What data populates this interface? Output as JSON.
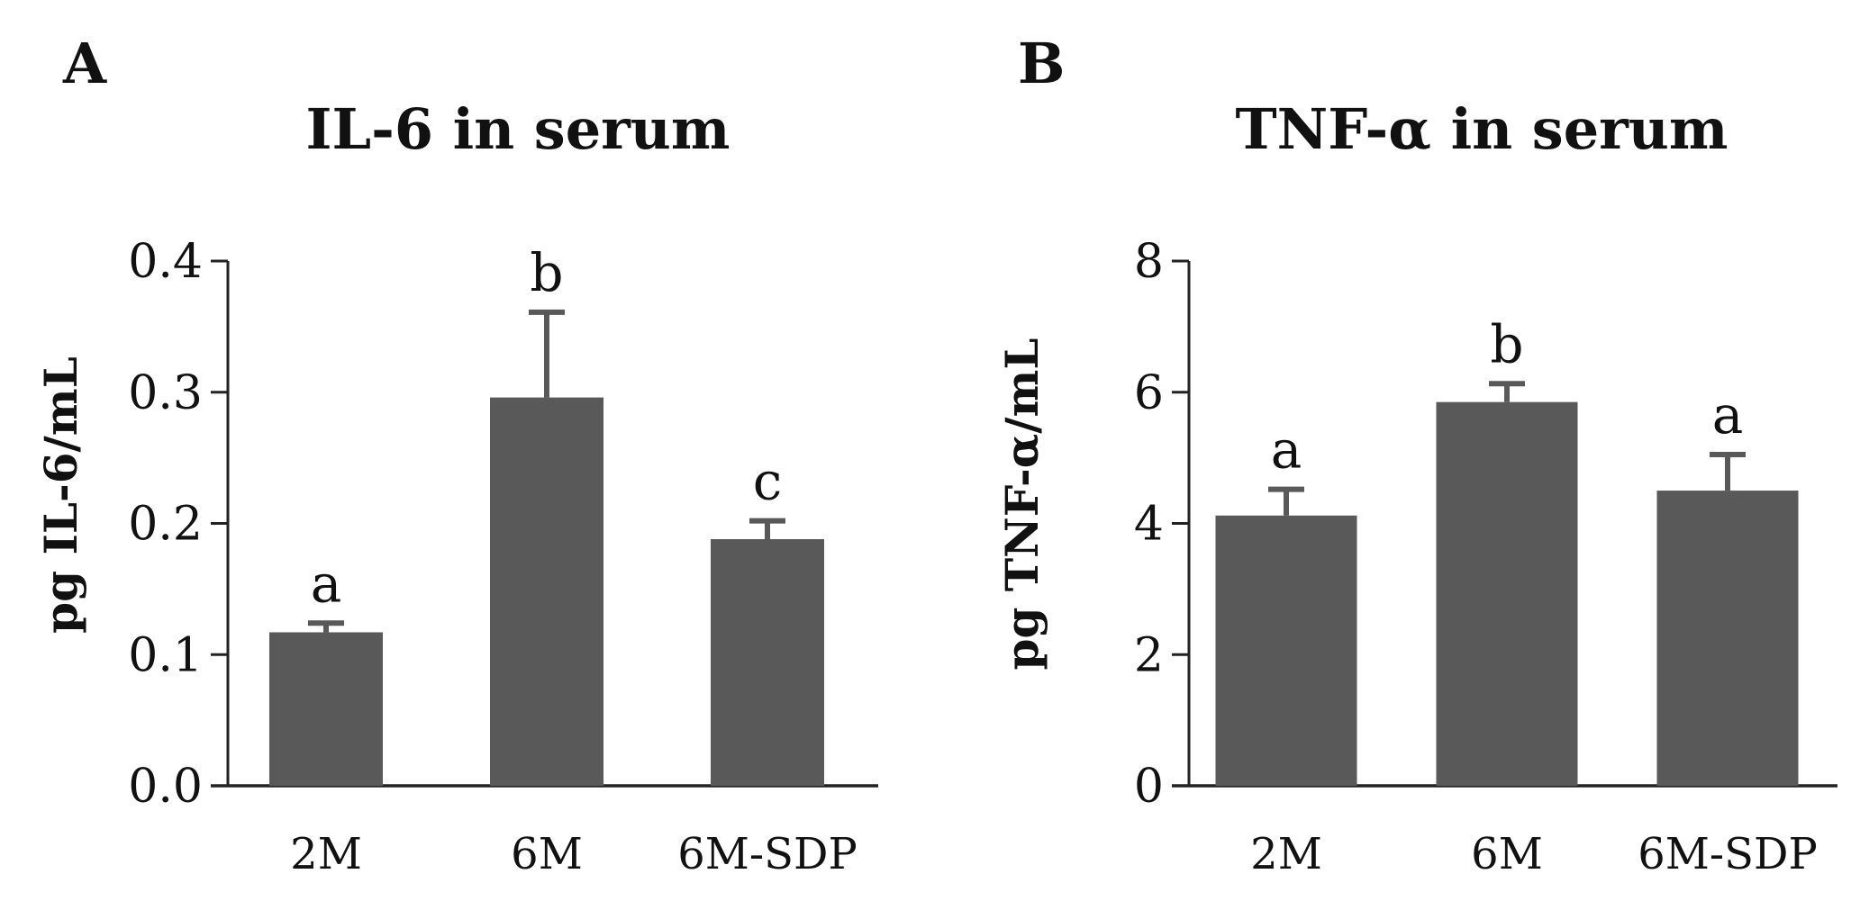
{
  "chart_data": [
    {
      "type": "bar",
      "panel": "A",
      "title": "IL-6 in serum",
      "xlabel": "",
      "ylabel": "pg IL-6/mL",
      "categories": [
        "2M",
        "6M",
        "6M-SDP"
      ],
      "values": [
        0.117,
        0.296,
        0.188
      ],
      "errors": [
        0.007,
        0.065,
        0.014
      ],
      "significance": [
        "a",
        "b",
        "c"
      ],
      "ylim": [
        0,
        0.4
      ],
      "yticks": [
        "0.0",
        "0.1",
        "0.2",
        "0.3",
        "0.4"
      ],
      "grid": false,
      "bar_color": "#595959"
    },
    {
      "type": "bar",
      "panel": "B",
      "title": "TNF-α in serum",
      "xlabel": "",
      "ylabel": "pg TNF-α/mL",
      "categories": [
        "2M",
        "6M",
        "6M-SDP"
      ],
      "values": [
        4.12,
        5.85,
        4.5
      ],
      "errors": [
        0.4,
        0.28,
        0.55
      ],
      "significance": [
        "a",
        "b",
        "a"
      ],
      "ylim": [
        0,
        8
      ],
      "yticks": [
        "0",
        "2",
        "4",
        "6",
        "8"
      ],
      "grid": false,
      "bar_color": "#595959"
    }
  ]
}
